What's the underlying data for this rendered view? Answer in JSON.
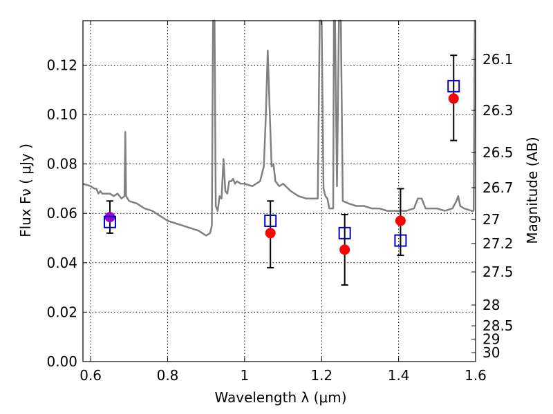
{
  "chart_data": {
    "type": "scatter",
    "xlabel": "Wavelength  λ (μm)",
    "ylabel": "Flux  Fν  ( μJy )",
    "ylabel_right": "Magnitude (AB)",
    "xlim": [
      0.58,
      1.6
    ],
    "ylim": [
      0,
      0.138
    ],
    "x_ticks": [
      {
        "value": 0.6,
        "label": "0.6"
      },
      {
        "value": 0.8,
        "label": "0.8"
      },
      {
        "value": 1.0,
        "label": "1"
      },
      {
        "value": 1.2,
        "label": "1.2"
      },
      {
        "value": 1.4,
        "label": "1.4"
      },
      {
        "value": 1.6,
        "label": "1.6"
      }
    ],
    "y_ticks": [
      {
        "value": 0.0,
        "label": "0.00"
      },
      {
        "value": 0.02,
        "label": "0.02"
      },
      {
        "value": 0.04,
        "label": "0.04"
      },
      {
        "value": 0.06,
        "label": "0.06"
      },
      {
        "value": 0.08,
        "label": "0.08"
      },
      {
        "value": 0.1,
        "label": "0.10"
      },
      {
        "value": 0.12,
        "label": "0.12"
      }
    ],
    "right_ticks": [
      {
        "flux": 0.1223,
        "label": "26.1"
      },
      {
        "flux": 0.1017,
        "label": "26.3"
      },
      {
        "flux": 0.0846,
        "label": "26.5"
      },
      {
        "flux": 0.0704,
        "label": "26.7"
      },
      {
        "flux": 0.0575,
        "label": "27"
      },
      {
        "flux": 0.0478,
        "label": "27.2"
      },
      {
        "flux": 0.0363,
        "label": "27.5"
      },
      {
        "flux": 0.0229,
        "label": "28"
      },
      {
        "flux": 0.0145,
        "label": "28.5"
      },
      {
        "flux": 0.0091,
        "label": "29"
      },
      {
        "flux": 0.0036,
        "label": "30"
      }
    ],
    "grid": true,
    "colors": {
      "spectrum": "#808080",
      "observed": "#ff0000",
      "observed_first": "#9900cc",
      "model": "#0000cc",
      "errorbar": "#000000"
    },
    "series": [
      {
        "kind": "line",
        "points": [
          [
            0.58,
            0.072
          ],
          [
            0.6,
            0.071
          ],
          [
            0.61,
            0.07
          ],
          [
            0.615,
            0.07
          ],
          [
            0.62,
            0.068
          ],
          [
            0.625,
            0.069
          ],
          [
            0.63,
            0.068
          ],
          [
            0.64,
            0.068
          ],
          [
            0.65,
            0.068
          ],
          [
            0.66,
            0.067
          ],
          [
            0.67,
            0.068
          ],
          [
            0.68,
            0.066
          ],
          [
            0.688,
            0.067
          ],
          [
            0.69,
            0.093
          ],
          [
            0.692,
            0.067
          ],
          [
            0.7,
            0.065
          ],
          [
            0.72,
            0.064
          ],
          [
            0.74,
            0.062
          ],
          [
            0.76,
            0.061
          ],
          [
            0.78,
            0.059
          ],
          [
            0.8,
            0.057
          ],
          [
            0.82,
            0.056
          ],
          [
            0.84,
            0.055
          ],
          [
            0.86,
            0.054
          ],
          [
            0.88,
            0.053
          ],
          [
            0.9,
            0.051
          ],
          [
            0.91,
            0.052
          ],
          [
            0.915,
            0.055
          ],
          [
            0.918,
            0.138
          ],
          [
            0.922,
            0.138
          ],
          [
            0.925,
            0.063
          ],
          [
            0.93,
            0.061
          ],
          [
            0.935,
            0.067
          ],
          [
            0.94,
            0.066
          ],
          [
            0.945,
            0.082
          ],
          [
            0.95,
            0.069
          ],
          [
            0.955,
            0.068
          ],
          [
            0.96,
            0.073
          ],
          [
            0.965,
            0.073
          ],
          [
            0.97,
            0.074
          ],
          [
            0.975,
            0.072
          ],
          [
            0.98,
            0.073
          ],
          [
            0.99,
            0.072
          ],
          [
            1.0,
            0.072
          ],
          [
            1.02,
            0.071
          ],
          [
            1.04,
            0.073
          ],
          [
            1.05,
            0.079
          ],
          [
            1.055,
            0.099
          ],
          [
            1.06,
            0.126
          ],
          [
            1.065,
            0.102
          ],
          [
            1.07,
            0.079
          ],
          [
            1.075,
            0.08
          ],
          [
            1.08,
            0.073
          ],
          [
            1.09,
            0.071
          ],
          [
            1.1,
            0.072
          ],
          [
            1.12,
            0.069
          ],
          [
            1.14,
            0.067
          ],
          [
            1.16,
            0.066
          ],
          [
            1.18,
            0.066
          ],
          [
            1.19,
            0.066
          ],
          [
            1.195,
            0.138
          ],
          [
            1.2,
            0.138
          ],
          [
            1.205,
            0.07
          ],
          [
            1.21,
            0.067
          ],
          [
            1.215,
            0.066
          ],
          [
            1.22,
            0.062
          ],
          [
            1.23,
            0.062
          ],
          [
            1.232,
            0.138
          ],
          [
            1.235,
            0.138
          ],
          [
            1.24,
            0.071
          ],
          [
            1.245,
            0.138
          ],
          [
            1.25,
            0.138
          ],
          [
            1.255,
            0.065
          ],
          [
            1.27,
            0.064
          ],
          [
            1.29,
            0.063
          ],
          [
            1.31,
            0.063
          ],
          [
            1.33,
            0.062
          ],
          [
            1.35,
            0.062
          ],
          [
            1.37,
            0.061
          ],
          [
            1.4,
            0.061
          ],
          [
            1.42,
            0.061
          ],
          [
            1.44,
            0.062
          ],
          [
            1.45,
            0.066
          ],
          [
            1.46,
            0.066
          ],
          [
            1.47,
            0.062
          ],
          [
            1.5,
            0.062
          ],
          [
            1.52,
            0.061
          ],
          [
            1.54,
            0.062
          ],
          [
            1.55,
            0.065
          ],
          [
            1.555,
            0.067
          ],
          [
            1.56,
            0.063
          ],
          [
            1.57,
            0.062
          ],
          [
            1.59,
            0.061
          ],
          [
            1.595,
            0.061
          ],
          [
            1.598,
            0.138
          ],
          [
            1.6,
            0.138
          ]
        ]
      },
      {
        "kind": "observed",
        "points": [
          {
            "x": 0.65,
            "y": 0.0585,
            "err_low": 0.052,
            "err_high": 0.065
          },
          {
            "x": 1.067,
            "y": 0.052,
            "err_low": 0.038,
            "err_high": 0.065
          },
          {
            "x": 1.26,
            "y": 0.0453,
            "err_low": 0.031,
            "err_high": 0.0595
          },
          {
            "x": 1.405,
            "y": 0.057,
            "err_low": 0.043,
            "err_high": 0.07
          },
          {
            "x": 1.543,
            "y": 0.1065,
            "err_low": 0.0895,
            "err_high": 0.124
          }
        ]
      },
      {
        "kind": "model",
        "points": [
          {
            "x": 0.65,
            "y": 0.0565
          },
          {
            "x": 1.067,
            "y": 0.057
          },
          {
            "x": 1.26,
            "y": 0.052
          },
          {
            "x": 1.405,
            "y": 0.049
          },
          {
            "x": 1.543,
            "y": 0.1115
          }
        ]
      }
    ]
  }
}
